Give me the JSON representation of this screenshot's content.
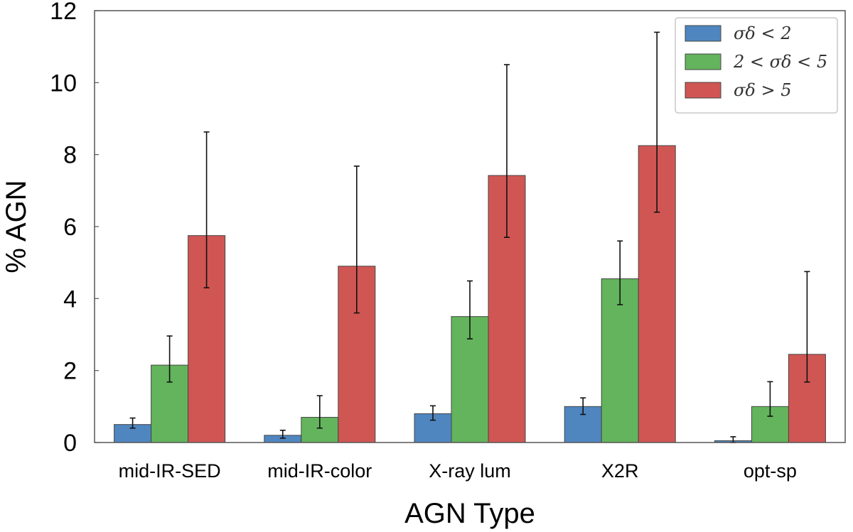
{
  "chart_data": {
    "type": "bar",
    "xlabel": "AGN Type",
    "ylabel": "% AGN",
    "ylim": [
      0,
      12
    ],
    "yticks": [
      0,
      2,
      4,
      6,
      8,
      10,
      12
    ],
    "grid": false,
    "legend_position": "top-right",
    "categories": [
      "mid-IR-SED",
      "mid-IR-color",
      "X-ray lum",
      "X2R",
      "opt-sp"
    ],
    "series": [
      {
        "name": "σδ < 2",
        "color": "#4f86c0",
        "values": [
          0.5,
          0.2,
          0.8,
          1.0,
          0.05
        ],
        "err_low": [
          0.4,
          0.12,
          0.62,
          0.78,
          0.0
        ],
        "err_high": [
          0.68,
          0.34,
          1.02,
          1.24,
          0.16
        ]
      },
      {
        "name": "2 < σδ < 5",
        "color": "#63b45c",
        "values": [
          2.15,
          0.7,
          3.5,
          4.55,
          1.0
        ],
        "err_low": [
          1.68,
          0.4,
          2.88,
          3.83,
          0.73
        ],
        "err_high": [
          2.96,
          1.3,
          4.49,
          5.6,
          1.69
        ]
      },
      {
        "name": "σδ > 5",
        "color": "#d05653",
        "values": [
          5.75,
          4.9,
          7.42,
          8.25,
          2.45
        ],
        "err_low": [
          4.3,
          3.6,
          5.7,
          6.4,
          1.68
        ],
        "err_high": [
          8.63,
          7.68,
          10.5,
          11.4,
          4.75
        ]
      }
    ]
  }
}
